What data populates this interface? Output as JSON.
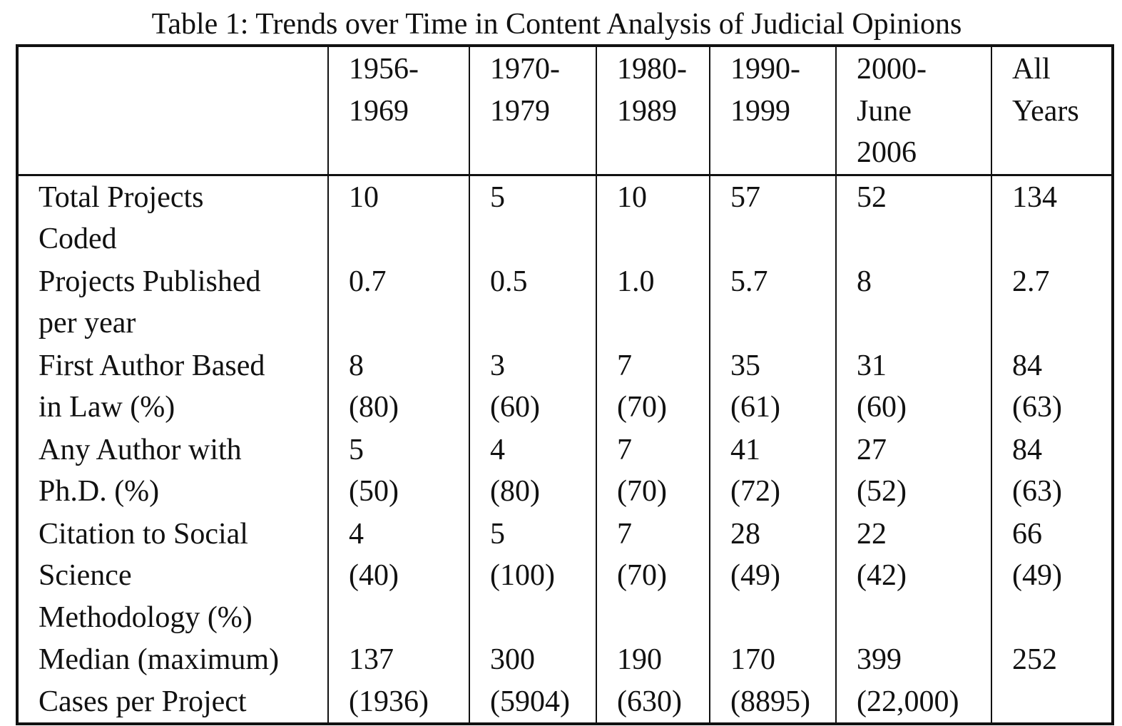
{
  "caption": "Table 1: Trends over Time in Content Analysis of Judicial Opinions",
  "columns": [
    {
      "lines": [
        "1956-",
        "1969"
      ]
    },
    {
      "lines": [
        "1970-",
        "1979"
      ]
    },
    {
      "lines": [
        "1980-",
        "1989"
      ]
    },
    {
      "lines": [
        "1990-",
        "1999"
      ]
    },
    {
      "lines": [
        "2000-",
        "June",
        "2006"
      ]
    },
    {
      "lines": [
        "All",
        "Years"
      ]
    }
  ],
  "rows": [
    {
      "label": [
        "Total Projects",
        "Coded"
      ],
      "cells": [
        [
          "10"
        ],
        [
          "5"
        ],
        [
          "10"
        ],
        [
          "57"
        ],
        [
          "52"
        ],
        [
          "134"
        ]
      ]
    },
    {
      "label": [
        "Projects Published",
        "per year"
      ],
      "cells": [
        [
          "0.7"
        ],
        [
          "0.5"
        ],
        [
          "1.0"
        ],
        [
          "5.7"
        ],
        [
          "8"
        ],
        [
          "2.7"
        ]
      ]
    },
    {
      "label": [
        "First Author Based",
        "in Law (%)"
      ],
      "cells": [
        [
          "8",
          "(80)"
        ],
        [
          "3",
          "(60)"
        ],
        [
          "7",
          "(70)"
        ],
        [
          "35",
          "(61)"
        ],
        [
          "31",
          "(60)"
        ],
        [
          "84",
          "(63)"
        ]
      ]
    },
    {
      "label": [
        "Any Author with",
        "Ph.D. (%)"
      ],
      "cells": [
        [
          "5",
          "(50)"
        ],
        [
          "4",
          "(80)"
        ],
        [
          "7",
          "(70)"
        ],
        [
          "41",
          "(72)"
        ],
        [
          "27",
          "(52)"
        ],
        [
          "84",
          "(63)"
        ]
      ]
    },
    {
      "label": [
        "Citation to Social",
        "Science",
        "Methodology (%)"
      ],
      "cells": [
        [
          "4",
          "(40)"
        ],
        [
          "5",
          "(100)"
        ],
        [
          "7",
          "(70)"
        ],
        [
          "28",
          "(49)"
        ],
        [
          "22",
          "(42)"
        ],
        [
          "66",
          "(49)"
        ]
      ]
    },
    {
      "label": [
        "Median (maximum)",
        "Cases per Project"
      ],
      "cells": [
        [
          "137",
          "(1936)"
        ],
        [
          "300",
          "(5904)"
        ],
        [
          "190",
          "(630)"
        ],
        [
          "170",
          "(8895)"
        ],
        [
          "399",
          "(22,000)"
        ],
        [
          "252"
        ]
      ]
    }
  ]
}
